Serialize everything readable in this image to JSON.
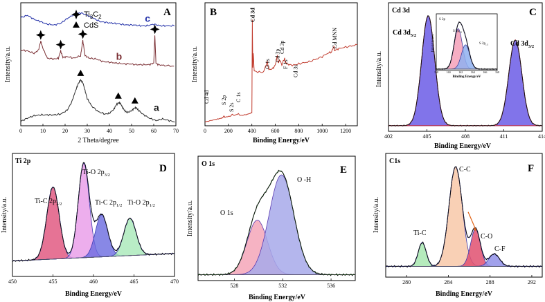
{
  "figure": {
    "description_free": true
  },
  "chart_data": [
    {
      "id": "A",
      "type": "line",
      "panel_label": "A",
      "xlabel": "2 Theta/degree",
      "ylabel": "Intensity/a.u.",
      "xlim": [
        0,
        70
      ],
      "xticks": [
        "0",
        "10",
        "20",
        "30",
        "40",
        "50",
        "60",
        "70"
      ],
      "legend": [
        {
          "symbol": "star",
          "label": "Ti3C2"
        },
        {
          "symbol": "triangle",
          "label": "CdS"
        }
      ],
      "series": [
        {
          "name": "a",
          "color": "#2a2a2a",
          "x": [
            0,
            3,
            6,
            9,
            12,
            15,
            18,
            21,
            23,
            25,
            26,
            27,
            28,
            29,
            30,
            32,
            35,
            38,
            40,
            42,
            43,
            44,
            45,
            46,
            47,
            48,
            50,
            51,
            52,
            53,
            55,
            58,
            61,
            64,
            67,
            70
          ],
          "y": [
            0.2,
            0.6,
            0.9,
            1.0,
            1.0,
            1.0,
            1.1,
            1.6,
            2.6,
            4.2,
            4.9,
            5.3,
            5.0,
            4.0,
            3.0,
            2.1,
            1.4,
            1.1,
            1.2,
            1.7,
            2.2,
            2.5,
            2.4,
            1.9,
            1.5,
            1.3,
            1.5,
            1.8,
            1.9,
            1.6,
            1.1,
            0.6,
            0.3,
            0.5,
            0.3,
            0.1
          ]
        },
        {
          "name": "b",
          "color": "#7a2e33",
          "x": [
            0,
            3,
            6,
            8,
            9,
            10,
            12,
            15,
            17,
            18,
            19,
            21,
            24,
            27,
            28,
            29,
            31,
            34,
            37,
            40,
            43,
            46,
            49,
            52,
            55,
            58,
            60,
            60.5,
            61,
            62,
            65,
            70
          ],
          "y": [
            9.0,
            8.9,
            8.6,
            9.0,
            10.1,
            9.2,
            8.0,
            7.9,
            8.0,
            8.9,
            8.1,
            8.2,
            8.0,
            8.3,
            10.2,
            8.3,
            8.0,
            7.9,
            7.6,
            7.5,
            7.4,
            7.3,
            7.3,
            7.2,
            7.2,
            7.2,
            7.4,
            10.8,
            7.4,
            7.2,
            7.1,
            7.0
          ]
        },
        {
          "name": "c",
          "color": "#2230a8",
          "x": [
            0,
            3,
            6,
            9,
            12,
            15,
            18,
            21,
            24,
            27,
            30,
            33,
            36,
            39,
            42,
            45,
            48,
            51,
            54,
            57,
            60,
            63,
            66,
            70
          ],
          "y": [
            13.0,
            13.3,
            12.8,
            12.5,
            12.2,
            12.1,
            12.3,
            12.9,
            13.4,
            13.6,
            13.3,
            12.9,
            12.5,
            12.4,
            12.3,
            12.2,
            12.1,
            12.1,
            12.0,
            12.0,
            12.2,
            12.0,
            12.0,
            12.0
          ]
        }
      ],
      "markers": [
        {
          "symbol": "star",
          "x": 9,
          "y": 10.1
        },
        {
          "symbol": "star",
          "x": 18,
          "y": 8.9
        },
        {
          "symbol": "star",
          "x": 28,
          "y": 10.2
        },
        {
          "symbol": "star",
          "x": 60.5,
          "y": 10.8
        },
        {
          "symbol": "triangle",
          "x": 27,
          "y": 5.3
        },
        {
          "symbol": "triangle",
          "x": 44,
          "y": 2.5
        },
        {
          "symbol": "triangle",
          "x": 51.5,
          "y": 1.9
        }
      ],
      "curve_labels": [
        {
          "text": "c",
          "x": 56,
          "y": 12.5,
          "color": "#2230a8"
        },
        {
          "text": "b",
          "x": 43,
          "y": 7.8,
          "color": "#7a2e33"
        },
        {
          "text": "a",
          "x": 60,
          "y": 1.5,
          "color": "#1a1a1a"
        }
      ]
    },
    {
      "id": "B",
      "type": "line",
      "panel_label": "B",
      "xlabel": "Binding Energy/eV",
      "ylabel": "Intensity/a.u.",
      "xlim": [
        0,
        1300
      ],
      "xticks": [
        "0",
        "200",
        "400",
        "600",
        "800",
        "1000",
        "1200"
      ],
      "series": [
        {
          "name": "survey",
          "color": "#c0392b",
          "x": [
            0,
            40,
            80,
            110,
            130,
            150,
            161,
            170,
            190,
            220,
            230,
            250,
            285,
            300,
            340,
            380,
            400,
            404,
            408,
            412,
            420,
            450,
            500,
            531,
            545,
            580,
            600,
            618,
            625,
            640,
            656,
            680,
            685,
            700,
            720,
            770,
            800,
            850,
            900,
            950,
            1000,
            1050,
            1080,
            1100,
            1105,
            1120,
            1150,
            1200,
            1250,
            1300
          ],
          "y": [
            2,
            3,
            4,
            4.5,
            5,
            5.5,
            7,
            6,
            6.5,
            7,
            8.5,
            7.5,
            9,
            7.5,
            8,
            9,
            10,
            88,
            48,
            60,
            45,
            44,
            44,
            53,
            46,
            47,
            50,
            58,
            52,
            54,
            50,
            56,
            52,
            51,
            50,
            50,
            51,
            52,
            53,
            55,
            57,
            60,
            61,
            66,
            62,
            63,
            64,
            65,
            66,
            67
          ]
        }
      ],
      "peak_labels": [
        {
          "text": "Cd 4d",
          "x": 11
        },
        {
          "text": "S 2p",
          "x": 161
        },
        {
          "text": "S 2s",
          "x": 226
        },
        {
          "text": "C 1s",
          "x": 285
        },
        {
          "text": "Cd 3d",
          "x": 405
        },
        {
          "text": "O 1s",
          "x": 531
        },
        {
          "text": "Cd 3p",
          "x": 618
        },
        {
          "text": "Cd 3p",
          "x": 656
        },
        {
          "text": "F 1s",
          "x": 685
        },
        {
          "text": "Cd 3s",
          "x": 770
        },
        {
          "text": "Cd MNN",
          "x": 1105
        }
      ]
    },
    {
      "id": "C",
      "type": "area",
      "panel_label": "C",
      "title": "Cd 3d",
      "xlabel": "Binding Energy/eV",
      "ylabel": "Intensity/a.u.",
      "xlim": [
        402,
        414
      ],
      "xticks": [
        "402",
        "405",
        "408",
        "411",
        "414"
      ],
      "peaks": [
        {
          "name": "Cd 3d5/2",
          "center": 405.1,
          "height": 10.0,
          "fwhm": 1.2
        },
        {
          "name": "Cd 3d3/2",
          "center": 411.9,
          "height": 7.8,
          "fwhm": 1.2
        }
      ],
      "peak_labels": [
        {
          "main": "Cd 3d",
          "sub": "5/2"
        },
        {
          "main": "Cd 3d",
          "sub": "3/2"
        }
      ],
      "inset": {
        "title": "S 2p",
        "xlabel": "Binding Energy/eV",
        "ylabel": "Intensity/a.u.",
        "xlim": [
          158,
          168
        ],
        "xticks": [
          "158",
          "160",
          "162",
          "164",
          "166",
          "168"
        ],
        "peaks": [
          {
            "name": "S 2p3/2",
            "center": 161.6,
            "height": 10,
            "fwhm": 1.6
          },
          {
            "name": "S 2p1/2",
            "center": 162.8,
            "height": 6,
            "fwhm": 1.6
          }
        ],
        "peak_labels": [
          {
            "main": "S 2p",
            "sub": "3/2"
          },
          {
            "main": "S 2p",
            "sub": "1/2"
          }
        ]
      }
    },
    {
      "id": "D",
      "type": "area",
      "panel_label": "D",
      "title": "Ti 2p",
      "xlabel": "Binding Energy/eV",
      "ylabel": "Intensity/a.u.",
      "xlim": [
        450,
        470
      ],
      "xticks": [
        "450",
        "455",
        "460",
        "465",
        "470"
      ],
      "peaks": [
        {
          "name": "Ti-C 2p3/2",
          "center": 455.0,
          "height": 5.8,
          "fwhm": 1.8,
          "color": "#e0507a"
        },
        {
          "name": "Ti-O 2p3/2",
          "center": 458.8,
          "height": 7.6,
          "fwhm": 1.6,
          "color": "#e89ae8"
        },
        {
          "name": "Ti-C 2p1/2",
          "center": 461.0,
          "height": 3.4,
          "fwhm": 1.8,
          "color": "#6a6ae0"
        },
        {
          "name": "Ti-O 2p1/2",
          "center": 464.5,
          "height": 3.0,
          "fwhm": 1.8,
          "color": "#a8e8b8"
        }
      ],
      "peak_labels": [
        {
          "main": "Ti-C 2p",
          "sub": "3/2"
        },
        {
          "main": "Ti-O 2p",
          "sub": "3/2"
        },
        {
          "main": "Ti-C 2p",
          "sub": "1/2"
        },
        {
          "main": "Ti-O 2p",
          "sub": "1/2"
        }
      ]
    },
    {
      "id": "E",
      "type": "area",
      "panel_label": "E",
      "title": "O 1s",
      "xlabel": "Binding Energy/eV",
      "ylabel": "Intensity/a.u.",
      "xlim": [
        525,
        538
      ],
      "xticks": [
        "528",
        "532",
        "536"
      ],
      "tick_values": [
        528,
        532,
        536
      ],
      "peaks": [
        {
          "name": "O 1s",
          "center": 529.9,
          "height": 4.7,
          "fwhm": 2.0,
          "color": "#f4a6b8"
        },
        {
          "name": "O -H",
          "center": 531.9,
          "height": 8.6,
          "fwhm": 2.4,
          "color": "#a7a9ea"
        }
      ],
      "peak_labels": [
        "O 1s",
        "O -H"
      ]
    },
    {
      "id": "F",
      "type": "area",
      "panel_label": "F",
      "title": "C1s",
      "xlabel": "Binding Energy/eV",
      "ylabel": "Intensity/a.u.",
      "xlim": [
        278,
        293
      ],
      "xticks": [
        "280",
        "284",
        "288",
        "292"
      ],
      "tick_values": [
        280,
        284,
        288,
        292
      ],
      "peaks": [
        {
          "name": "Ti-C",
          "center": 281.5,
          "height": 2.1,
          "fwhm": 0.9,
          "color": "#a8e8b0"
        },
        {
          "name": "C-C",
          "center": 284.7,
          "height": 8.8,
          "fwhm": 1.5,
          "color": "#f8c8a8"
        },
        {
          "name": "C-O",
          "center": 286.6,
          "height": 3.3,
          "fwhm": 1.1,
          "color": "#e05070"
        },
        {
          "name": "C-F",
          "center": 288.4,
          "height": 1.1,
          "fwhm": 1.2,
          "color": "#9090e8"
        }
      ],
      "peak_labels": [
        "Ti-C",
        "C-C",
        "C-O",
        "C-F"
      ]
    }
  ]
}
